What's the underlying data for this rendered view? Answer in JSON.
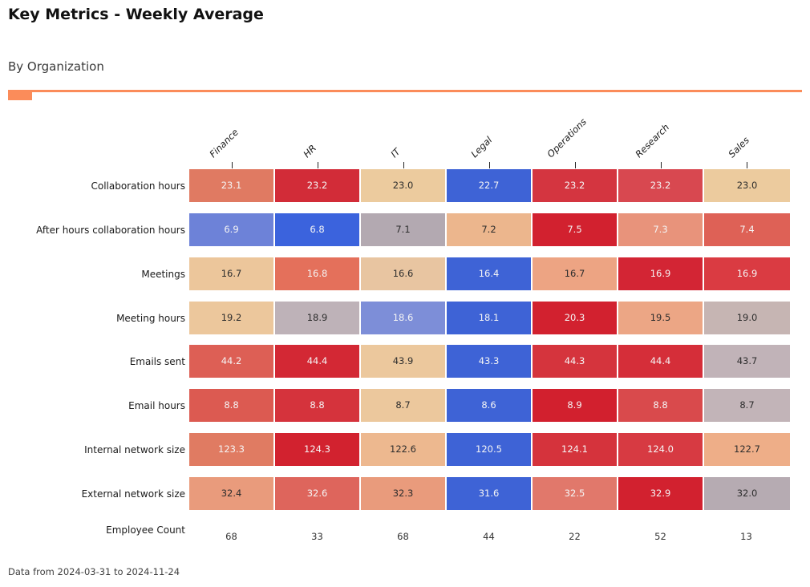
{
  "title": "Key Metrics - Weekly Average",
  "subtitle": "By Organization",
  "footer_note": "Data from 2024-03-31 to 2024-11-24",
  "accent_color": "#fb8c5a",
  "chart_data": {
    "type": "heatmap",
    "title": "Key Metrics - Weekly Average",
    "subtitle": "By Organization",
    "annotation": "Data from 2024-03-31 to 2024-11-24",
    "legend_position": "none",
    "grid": false,
    "columns": [
      "Finance",
      "HR",
      "IT",
      "Legal",
      "Operations",
      "Research",
      "Sales"
    ],
    "rows": [
      {
        "label": "Collaboration hours",
        "values": [
          "23.1",
          "23.2",
          "23.0",
          "22.7",
          "23.2",
          "23.2",
          "23.0"
        ],
        "cell_colors": [
          "#e07a62",
          "#d22c38",
          "#eccb9e",
          "#3e63d6",
          "#d43540",
          "#d84850",
          "#eccb9e"
        ],
        "text_styles": [
          "light",
          "light",
          "dark",
          "light",
          "light",
          "light",
          "dark"
        ]
      },
      {
        "label": "After hours collaboration hours",
        "values": [
          "6.9",
          "6.8",
          "7.1",
          "7.2",
          "7.5",
          "7.3",
          "7.4"
        ],
        "cell_colors": [
          "#6d82d8",
          "#3b63dd",
          "#b3a9b1",
          "#ecb68d",
          "#d2212f",
          "#e8937b",
          "#de6156"
        ],
        "text_styles": [
          "light",
          "light",
          "dark",
          "dark",
          "light",
          "light",
          "light"
        ]
      },
      {
        "label": "Meetings",
        "values": [
          "16.7",
          "16.8",
          "16.6",
          "16.4",
          "16.7",
          "16.9",
          "16.9"
        ],
        "cell_colors": [
          "#ecc69b",
          "#e4705b",
          "#e8c5a1",
          "#3e63d6",
          "#eda483",
          "#d32534",
          "#da3b42"
        ],
        "text_styles": [
          "dark",
          "light",
          "dark",
          "light",
          "dark",
          "light",
          "light"
        ]
      },
      {
        "label": "Meeting hours",
        "values": [
          "19.2",
          "18.9",
          "18.6",
          "18.1",
          "20.3",
          "19.5",
          "19.0"
        ],
        "cell_colors": [
          "#ecc79c",
          "#beb2b8",
          "#7d8ed8",
          "#3e63d6",
          "#d2212f",
          "#eca685",
          "#c6b5b3"
        ],
        "text_styles": [
          "dark",
          "dark",
          "light",
          "light",
          "light",
          "dark",
          "dark"
        ]
      },
      {
        "label": "Emails sent",
        "values": [
          "44.2",
          "44.4",
          "43.9",
          "43.3",
          "44.3",
          "44.4",
          "43.7"
        ],
        "cell_colors": [
          "#dd5f55",
          "#d32834",
          "#ecc89d",
          "#3e63d6",
          "#d5343d",
          "#d52e39",
          "#c1b3b8"
        ],
        "text_styles": [
          "light",
          "light",
          "dark",
          "light",
          "light",
          "light",
          "dark"
        ]
      },
      {
        "label": "Email hours",
        "values": [
          "8.8",
          "8.8",
          "8.7",
          "8.6",
          "8.9",
          "8.8",
          "8.7"
        ],
        "cell_colors": [
          "#dc5a51",
          "#d5333c",
          "#ecc89d",
          "#3e63d6",
          "#d2202e",
          "#d94a4c",
          "#c2b4b8"
        ],
        "text_styles": [
          "light",
          "light",
          "dark",
          "light",
          "light",
          "light",
          "dark"
        ]
      },
      {
        "label": "Internal network size",
        "values": [
          "123.3",
          "124.3",
          "122.6",
          "120.5",
          "124.1",
          "124.0",
          "122.7"
        ],
        "cell_colors": [
          "#e07b62",
          "#d2222f",
          "#edb88f",
          "#3e63d6",
          "#d5333c",
          "#d73a42",
          "#eeae88"
        ],
        "text_styles": [
          "light",
          "light",
          "dark",
          "light",
          "light",
          "light",
          "dark"
        ]
      },
      {
        "label": "External network size",
        "values": [
          "32.4",
          "32.6",
          "32.3",
          "31.6",
          "32.5",
          "32.9",
          "32.0"
        ],
        "cell_colors": [
          "#e99b7c",
          "#de655c",
          "#e99b7c",
          "#3e63d6",
          "#e1786b",
          "#d2212f",
          "#b6abb2"
        ],
        "text_styles": [
          "dark",
          "light",
          "dark",
          "light",
          "light",
          "light",
          "dark"
        ]
      },
      {
        "label": "Employee Count",
        "plain": true,
        "values": [
          "68",
          "33",
          "68",
          "44",
          "22",
          "52",
          "13"
        ]
      }
    ]
  }
}
